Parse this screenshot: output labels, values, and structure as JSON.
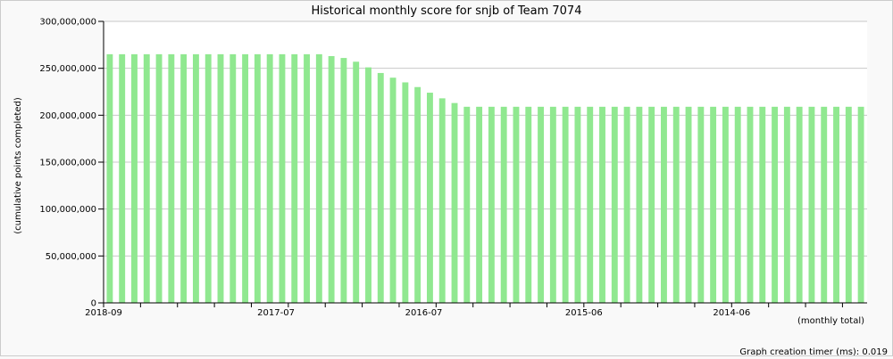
{
  "chart_data": {
    "type": "bar",
    "title": "Historical monthly score for snjb of Team 7074",
    "ylabel": "(cumulative points completed)",
    "xlabel": "(monthly total)",
    "ylim": [
      0,
      300000000
    ],
    "y_ticks": [
      {
        "value": 0,
        "label": "0"
      },
      {
        "value": 50000000,
        "label": "50,000,000"
      },
      {
        "value": 100000000,
        "label": "100,000,000"
      },
      {
        "value": 150000000,
        "label": "150,000,000"
      },
      {
        "value": 200000000,
        "label": "200,000,000"
      },
      {
        "value": 250000000,
        "label": "250,000,000"
      },
      {
        "value": 300000000,
        "label": "300,000,000"
      }
    ],
    "x_tick_labels": [
      {
        "index": 0,
        "label": "2018-09"
      },
      {
        "index": 14,
        "label": "2017-07"
      },
      {
        "index": 26,
        "label": "2016-07"
      },
      {
        "index": 39,
        "label": "2015-06"
      },
      {
        "index": 51,
        "label": "2014-06"
      }
    ],
    "grid": true,
    "bar_color": "#90e890",
    "values": [
      265000000,
      265000000,
      265000000,
      265000000,
      265000000,
      265000000,
      265000000,
      265000000,
      265000000,
      265000000,
      265000000,
      265000000,
      265000000,
      265000000,
      265000000,
      265000000,
      265000000,
      265000000,
      263000000,
      261000000,
      257000000,
      251000000,
      245000000,
      240000000,
      235000000,
      230000000,
      224000000,
      218000000,
      213000000,
      209000000,
      209000000,
      209000000,
      209000000,
      209000000,
      209000000,
      209000000,
      209000000,
      209000000,
      209000000,
      209000000,
      209000000,
      209000000,
      209000000,
      209000000,
      209000000,
      209000000,
      209000000,
      209000000,
      209000000,
      209000000,
      209000000,
      209000000,
      209000000,
      209000000,
      209000000,
      209000000,
      209000000,
      209000000,
      209000000,
      209000000,
      209000000,
      209000000
    ]
  },
  "footer": {
    "timer_text": "Graph creation timer (ms): 0.019"
  }
}
